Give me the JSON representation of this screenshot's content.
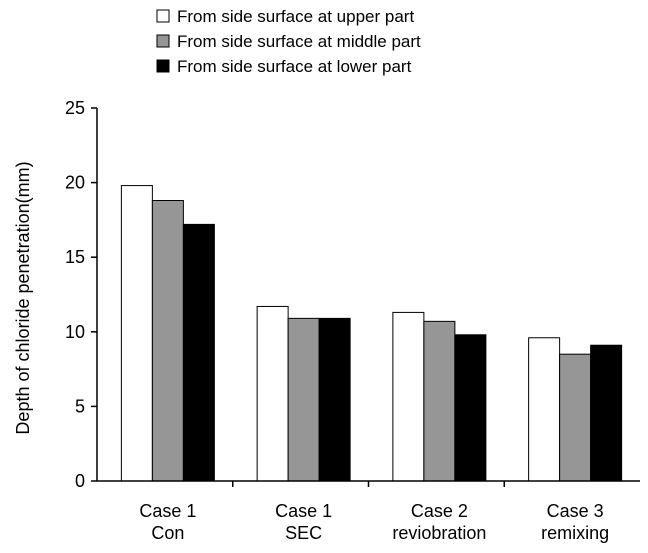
{
  "chart_data": {
    "type": "bar",
    "title": "",
    "xlabel": "",
    "ylabel": "Depth of chloride penetration(mm)",
    "ylim": [
      0,
      25
    ],
    "yticks": [
      0,
      5,
      10,
      15,
      20,
      25
    ],
    "grid": false,
    "legend_position": "top",
    "categories": [
      [
        "Case 1",
        "Con"
      ],
      [
        "Case 1",
        "SEC"
      ],
      [
        "Case 2",
        "reviobration"
      ],
      [
        "Case 3",
        "remixing"
      ]
    ],
    "series": [
      {
        "name": "From side surface at upper part",
        "color": "#ffffff",
        "values": [
          19.8,
          11.7,
          11.3,
          9.6
        ]
      },
      {
        "name": "From side surface at middle part",
        "color": "#969696",
        "values": [
          18.8,
          10.9,
          10.7,
          8.5
        ]
      },
      {
        "name": "From side surface at lower part",
        "color": "#000000",
        "values": [
          17.2,
          10.9,
          9.8,
          9.1
        ]
      }
    ]
  }
}
